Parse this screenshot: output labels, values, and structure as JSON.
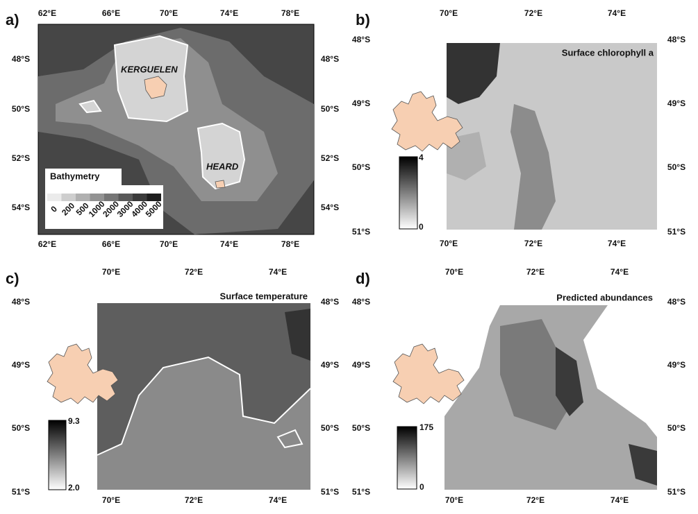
{
  "panels": [
    {
      "label": "a)",
      "title": "Bathymetry",
      "top_ticks": [
        "62°E",
        "66°E",
        "70°E",
        "74°E",
        "78°E"
      ],
      "bottom_ticks": [
        "62°E",
        "66°E",
        "70°E",
        "74°E",
        "78°E"
      ],
      "left_ticks": [
        "48°S",
        "50°S",
        "52°S",
        "54°S"
      ],
      "right_ticks": [
        "48°S",
        "50°S",
        "52°S",
        "54°S"
      ],
      "legend": [
        "0",
        "200",
        "500",
        "1000",
        "2000",
        "3000",
        "4000",
        "5000"
      ],
      "places": [
        "KERGUELEN",
        "HEARD"
      ]
    },
    {
      "label": "b)",
      "title": "Surface chlorophyll a",
      "top_ticks": [
        "70°E",
        "72°E",
        "74°E"
      ],
      "bottom_ticks": [
        "70°E",
        "72°E",
        "74°E"
      ],
      "left_ticks": [
        "48°S",
        "49°S",
        "50°S",
        "51°S"
      ],
      "right_ticks": [
        "48°S",
        "49°S",
        "50°S",
        "51°S"
      ],
      "legend": [
        "4",
        "0"
      ]
    },
    {
      "label": "c)",
      "title": "Surface temperature",
      "top_ticks": [
        "70°E",
        "72°E",
        "74°E"
      ],
      "bottom_ticks": [
        "70°E",
        "72°E",
        "74°E"
      ],
      "left_ticks": [
        "48°S",
        "49°S",
        "50°S",
        "51°S"
      ],
      "right_ticks": [
        "48°S",
        "49°S",
        "50°S",
        "51°S"
      ],
      "legend": [
        "9.3",
        "2.0"
      ]
    },
    {
      "label": "d)",
      "title": "Predicted abundances",
      "top_ticks": [
        "70°E",
        "72°E",
        "74°E"
      ],
      "bottom_ticks": [
        "70°E",
        "72°E",
        "74°E"
      ],
      "left_ticks": [
        "48°S",
        "49°S",
        "50°S",
        "51°S"
      ],
      "right_ticks": [
        "48°S",
        "49°S",
        "50°S",
        "51°S"
      ],
      "legend": [
        "175",
        "0"
      ]
    }
  ]
}
